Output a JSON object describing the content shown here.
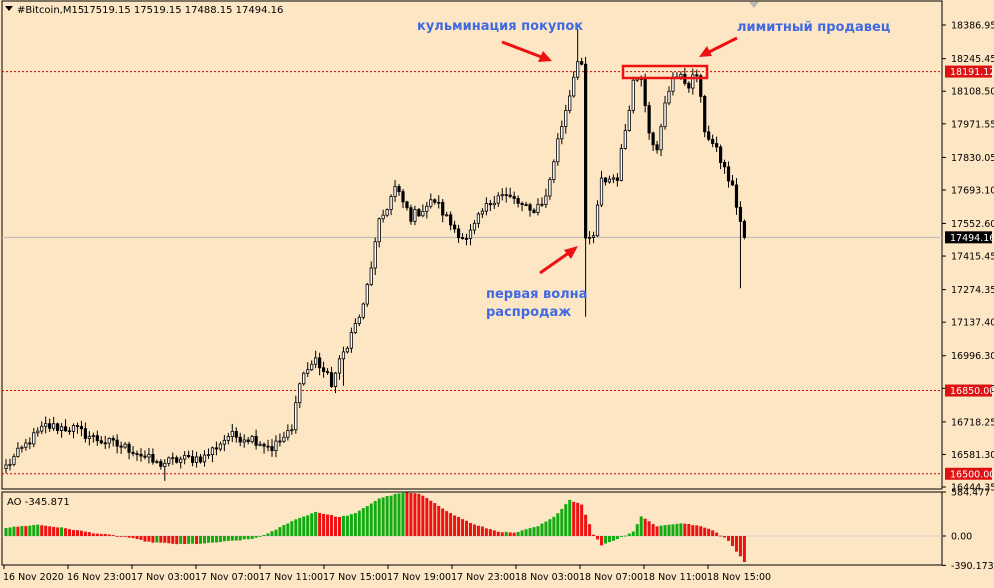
{
  "header": {
    "symbol": "#Bitcoin,M15",
    "ohlc": "17519.15 17519.15 17488.15 17494.16"
  },
  "annotations": {
    "buying_climax": "кульминация покупок",
    "limit_seller": "лимитный продавец",
    "first_wave_line1": "первая волна",
    "first_wave_line2": "распродаж"
  },
  "colors": {
    "background": "#fde6c4",
    "candle": "#000000",
    "level_line": "#cc0000",
    "label_bg": "#dd1111",
    "annotation_text": "#4169e1",
    "arrow": "#ee1111",
    "ao_up": "#11aa11",
    "ao_down": "#ee1111"
  },
  "chart_data": [
    {
      "type": "candlestick",
      "name": "price",
      "ylim": [
        16444.35,
        18386.95
      ],
      "y_ticks": [
        "18386.95",
        "18245.45",
        "18108.50",
        "17971.55",
        "17830.05",
        "17693.10",
        "17552.60",
        "17415.45",
        "17274.35",
        "17137.40",
        "16996.30",
        "16859.35",
        "16718.25",
        "16581.30",
        "16444.35"
      ],
      "current_price": "17494.16",
      "levels": [
        {
          "value": 18191.12,
          "label": "18191.12"
        },
        {
          "value": 16850.0,
          "label": "16850.00"
        },
        {
          "value": 16500.0,
          "label": "16500.00"
        }
      ],
      "x_labels": [
        "16 Nov 2020",
        "16 Nov 23:00",
        "17 Nov 03:00",
        "17 Nov 07:00",
        "17 Nov 11:00",
        "17 Nov 15:00",
        "17 Nov 19:00",
        "17 Nov 23:00",
        "18 Nov 03:00",
        "18 Nov 07:00",
        "18 Nov 11:00",
        "18 Nov 15:00"
      ],
      "anchors": [
        [
          0,
          16530
        ],
        [
          6,
          16640
        ],
        [
          10,
          16700
        ],
        [
          17,
          16690
        ],
        [
          22,
          16650
        ],
        [
          26,
          16630
        ],
        [
          32,
          16600
        ],
        [
          38,
          16540
        ],
        [
          44,
          16560
        ],
        [
          50,
          16570
        ],
        [
          56,
          16660
        ],
        [
          62,
          16650
        ],
        [
          67,
          16610
        ],
        [
          72,
          16680
        ],
        [
          74,
          16900
        ],
        [
          78,
          16980
        ],
        [
          82,
          16880
        ],
        [
          86,
          17050
        ],
        [
          90,
          17200
        ],
        [
          94,
          17550
        ],
        [
          98,
          17700
        ],
        [
          102,
          17580
        ],
        [
          108,
          17650
        ],
        [
          112,
          17550
        ],
        [
          116,
          17480
        ],
        [
          120,
          17600
        ],
        [
          124,
          17680
        ],
        [
          128,
          17650
        ],
        [
          132,
          17600
        ],
        [
          136,
          17660
        ],
        [
          139,
          17900
        ],
        [
          142,
          18100
        ],
        [
          144,
          18250
        ],
        [
          145,
          18220
        ],
        [
          146,
          17470
        ],
        [
          148,
          17500
        ],
        [
          150,
          17730
        ],
        [
          154,
          17750
        ],
        [
          156,
          17950
        ],
        [
          158,
          18150
        ],
        [
          160,
          18180
        ],
        [
          162,
          17950
        ],
        [
          164,
          17850
        ],
        [
          166,
          18050
        ],
        [
          168,
          18180
        ],
        [
          172,
          18140
        ],
        [
          174,
          18180
        ],
        [
          176,
          17950
        ],
        [
          180,
          17820
        ],
        [
          183,
          17700
        ],
        [
          185,
          17560
        ],
        [
          186,
          17494.16
        ]
      ],
      "spikes": [
        {
          "i": 144,
          "high": 18370
        },
        {
          "i": 146,
          "low": 17160
        },
        {
          "i": 185,
          "low": 17280
        },
        {
          "i": 40,
          "low": 16470
        },
        {
          "i": 85,
          "low": 16870
        }
      ]
    },
    {
      "type": "histogram",
      "name": "AO",
      "title": "AO -345.871",
      "ylim": [
        -480,
        640
      ],
      "y_ticks": [
        "584.477",
        "0.00",
        "-390.173"
      ],
      "anchors": [
        [
          0,
          110
        ],
        [
          8,
          150
        ],
        [
          14,
          110
        ],
        [
          22,
          40
        ],
        [
          30,
          -10
        ],
        [
          36,
          -80
        ],
        [
          44,
          -110
        ],
        [
          50,
          -100
        ],
        [
          56,
          -70
        ],
        [
          62,
          -40
        ],
        [
          66,
          30
        ],
        [
          72,
          200
        ],
        [
          78,
          320
        ],
        [
          84,
          250
        ],
        [
          88,
          300
        ],
        [
          94,
          500
        ],
        [
          100,
          580
        ],
        [
          104,
          560
        ],
        [
          108,
          440
        ],
        [
          112,
          300
        ],
        [
          118,
          150
        ],
        [
          124,
          60
        ],
        [
          128,
          40
        ],
        [
          134,
          130
        ],
        [
          138,
          250
        ],
        [
          142,
          480
        ],
        [
          145,
          420
        ],
        [
          148,
          20
        ],
        [
          150,
          -120
        ],
        [
          154,
          -40
        ],
        [
          158,
          60
        ],
        [
          160,
          260
        ],
        [
          164,
          130
        ],
        [
          170,
          170
        ],
        [
          174,
          140
        ],
        [
          178,
          80
        ],
        [
          182,
          -60
        ],
        [
          186,
          -345.871
        ]
      ]
    }
  ]
}
